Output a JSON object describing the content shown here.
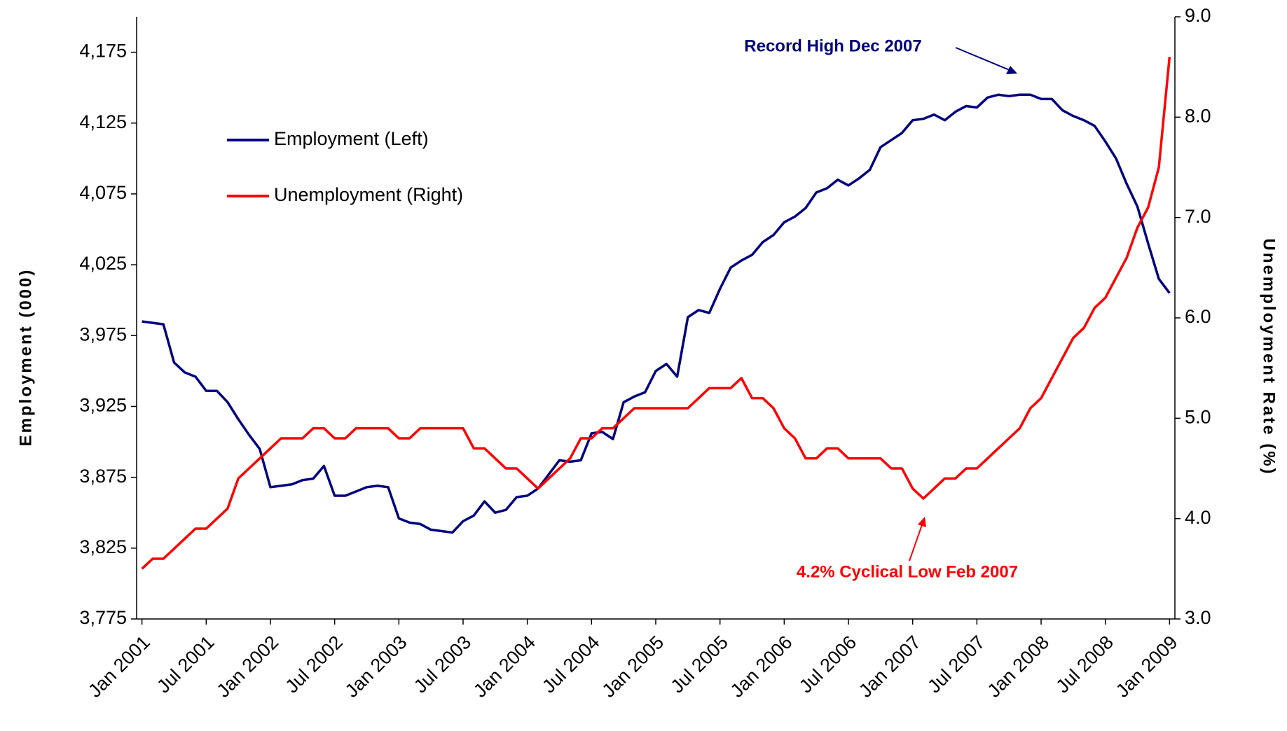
{
  "chart_data": {
    "type": "line",
    "y_label": "Employment (000)",
    "y2_label": "Unemployment Rate (%)",
    "categories": [
      "Jan 2001",
      null,
      null,
      null,
      null,
      null,
      "Jul 2001",
      null,
      null,
      null,
      null,
      null,
      "Jan 2002",
      null,
      null,
      null,
      null,
      null,
      "Jul 2002",
      null,
      null,
      null,
      null,
      null,
      "Jan 2003",
      null,
      null,
      null,
      null,
      null,
      "Jul 2003",
      null,
      null,
      null,
      null,
      null,
      "Jan 2004",
      null,
      null,
      null,
      null,
      null,
      "Jul 2004",
      null,
      null,
      null,
      null,
      null,
      "Jan 2005",
      null,
      null,
      null,
      null,
      null,
      "Jul 2005",
      null,
      null,
      null,
      null,
      null,
      "Jan 2006",
      null,
      null,
      null,
      null,
      null,
      "Jul 2006",
      null,
      null,
      null,
      null,
      null,
      "Jan 2007",
      null,
      null,
      null,
      null,
      null,
      "Jul 2007",
      null,
      null,
      null,
      null,
      null,
      "Jan 2008",
      null,
      null,
      null,
      null,
      null,
      "Jul 2008",
      null,
      null,
      null,
      null,
      null,
      "Jan 2009"
    ],
    "series": [
      {
        "name": "Employment (Left)",
        "color": "#000080",
        "values": [
          3985,
          3984,
          3983,
          3956,
          3949,
          3946,
          3936,
          3936,
          3928,
          3916,
          3905,
          3895,
          3868,
          3869,
          3870,
          3873,
          3874,
          3883,
          3862,
          3862,
          3865,
          3868,
          3869,
          3868,
          3846,
          3843,
          3842,
          3838,
          3837,
          3836,
          3844,
          3848,
          3858,
          3850,
          3852,
          3861,
          3862,
          3867,
          3877,
          3887,
          3886,
          3887,
          3906,
          3907,
          3902,
          3928,
          3932,
          3935,
          3950,
          3955,
          3946,
          3988,
          3993,
          3991,
          4008,
          4023,
          4028,
          4032,
          4041,
          4046,
          4055,
          4059,
          4065,
          4076,
          4079,
          4085,
          4081,
          4086,
          4092,
          4108,
          4113,
          4118,
          4127,
          4128,
          4131,
          4127,
          4133,
          4137,
          4136,
          4143,
          4145,
          4144,
          4145,
          4145,
          4142,
          4142,
          4134,
          4130,
          4127,
          4123,
          4112,
          4100,
          4082,
          4066,
          4040,
          4015,
          4005
        ]
      },
      {
        "name": "Unemployment (Right)",
        "color": "#ff0000",
        "axis": "y2",
        "values": [
          3.5,
          3.6,
          3.6,
          3.7,
          3.8,
          3.9,
          3.9,
          4.0,
          4.1,
          4.4,
          4.5,
          4.6,
          4.7,
          4.8,
          4.8,
          4.8,
          4.9,
          4.9,
          4.8,
          4.8,
          4.9,
          4.9,
          4.9,
          4.9,
          4.8,
          4.8,
          4.9,
          4.9,
          4.9,
          4.9,
          4.9,
          4.7,
          4.7,
          4.6,
          4.5,
          4.5,
          4.4,
          4.3,
          4.4,
          4.5,
          4.6,
          4.8,
          4.8,
          4.9,
          4.9,
          5.0,
          5.1,
          5.1,
          5.1,
          5.1,
          5.1,
          5.1,
          5.2,
          5.3,
          5.3,
          5.3,
          5.4,
          5.2,
          5.2,
          5.1,
          4.9,
          4.8,
          4.6,
          4.6,
          4.7,
          4.7,
          4.6,
          4.6,
          4.6,
          4.6,
          4.5,
          4.5,
          4.3,
          4.2,
          4.3,
          4.4,
          4.4,
          4.5,
          4.5,
          4.6,
          4.7,
          4.8,
          4.9,
          5.1,
          5.2,
          5.4,
          5.6,
          5.8,
          5.9,
          6.1,
          6.2,
          6.4,
          6.6,
          6.9,
          7.1,
          7.5,
          8.6
        ]
      }
    ],
    "ylim": [
      3775,
      4200
    ],
    "yticks": [
      {
        "value": 3775,
        "label": "3,775"
      },
      {
        "value": 3825,
        "label": "3,825"
      },
      {
        "value": 3875,
        "label": "3,875"
      },
      {
        "value": 3925,
        "label": "3,925"
      },
      {
        "value": 3975,
        "label": "3,975"
      },
      {
        "value": 4025,
        "label": "4,025"
      },
      {
        "value": 4075,
        "label": "4,075"
      },
      {
        "value": 4125,
        "label": "4,125"
      },
      {
        "value": 4175,
        "label": "4,175"
      }
    ],
    "y2lim": [
      3,
      9
    ],
    "y2ticks": [
      {
        "value": 3,
        "label": "3.0"
      },
      {
        "value": 4,
        "label": "4.0"
      },
      {
        "value": 5,
        "label": "5.0"
      },
      {
        "value": 6,
        "label": "6.0"
      },
      {
        "value": 7,
        "label": "7.0"
      },
      {
        "value": 8,
        "label": "8.0"
      },
      {
        "value": 9,
        "label": "9.0"
      }
    ],
    "annotations": [
      {
        "text": "Record High Dec 2007",
        "color": "#000080"
      },
      {
        "text": "4.2% Cyclical Low Feb 2007",
        "color": "#ff0000"
      }
    ]
  }
}
